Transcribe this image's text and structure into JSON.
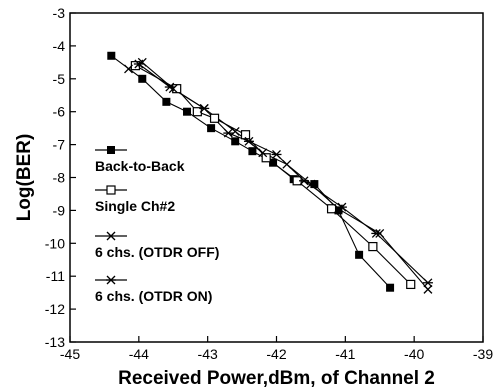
{
  "chart_data": {
    "type": "line",
    "title": "",
    "xlabel": "Received Power,dBm, of Channel 2",
    "ylabel": "Log(BER)",
    "xlim": [
      -45,
      -39
    ],
    "ylim": [
      -13,
      -3
    ],
    "xticks": [
      -45,
      -44,
      -43,
      -42,
      -41,
      -40,
      -39
    ],
    "yticks": [
      -13,
      -12,
      -11,
      -10,
      -9,
      -8,
      -7,
      -6,
      -5,
      -4,
      -3
    ],
    "grid": false,
    "legend_position": "left",
    "series": [
      {
        "name": "Back-to-Back",
        "marker": "filled-square",
        "x": [
          -44.4,
          -43.95,
          -43.6,
          -43.3,
          -42.95,
          -42.6,
          -42.35,
          -42.05,
          -41.75,
          -41.45,
          -41.1,
          -40.8,
          -40.35
        ],
        "y": [
          -4.3,
          -5.0,
          -5.7,
          -6.0,
          -6.5,
          -6.9,
          -7.2,
          -7.55,
          -8.05,
          -8.2,
          -9.0,
          -10.35,
          -11.35
        ]
      },
      {
        "name": "Single Ch#2",
        "marker": "open-square",
        "x": [
          -44.05,
          -43.45,
          -43.15,
          -42.9,
          -42.45,
          -42.15,
          -41.7,
          -41.2,
          -40.6,
          -40.05
        ],
        "y": [
          -4.6,
          -5.3,
          -6.0,
          -6.2,
          -6.7,
          -7.4,
          -8.1,
          -8.95,
          -10.1,
          -11.25
        ]
      },
      {
        "name": "6 chs. (OTDR OFF)",
        "marker": "x",
        "x": [
          -44.15,
          -43.95,
          -43.5,
          -43.05,
          -42.6,
          -42.2,
          -41.85,
          -41.5,
          -41.1,
          -40.5,
          -39.8
        ],
        "y": [
          -4.7,
          -4.5,
          -5.3,
          -5.9,
          -6.6,
          -7.25,
          -7.6,
          -8.2,
          -8.95,
          -9.7,
          -11.4
        ]
      },
      {
        "name": "6 chs. (OTDR ON)",
        "marker": "asterisk",
        "x": [
          -44.0,
          -43.55,
          -43.05,
          -42.7,
          -42.4,
          -42.0,
          -41.6,
          -41.05,
          -40.55,
          -39.8
        ],
        "y": [
          -4.55,
          -5.25,
          -5.9,
          -6.65,
          -6.9,
          -7.3,
          -8.1,
          -8.9,
          -9.7,
          -11.2
        ]
      }
    ]
  }
}
